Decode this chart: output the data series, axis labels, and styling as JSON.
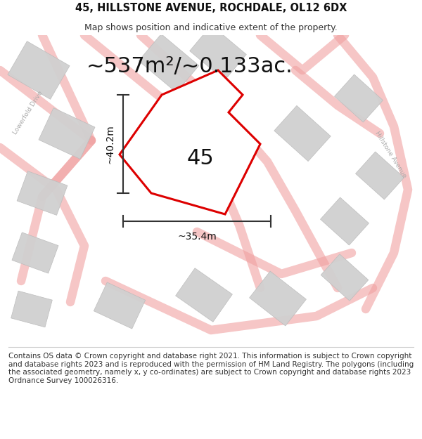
{
  "title": "45, HILLSTONE AVENUE, ROCHDALE, OL12 6DX",
  "subtitle": "Map shows position and indicative extent of the property.",
  "area_text": "~537m²/~0.133ac.",
  "width_label": "~35.4m",
  "height_label": "~40.2m",
  "number_label": "45",
  "footer_text": "Contains OS data © Crown copyright and database right 2021. This information is subject to Crown copyright and database rights 2023 and is reproduced with the permission of HM Land Registry. The polygons (including the associated geometry, namely x, y co-ordinates) are subject to Crown copyright and database rights 2023 Ordnance Survey 100026316.",
  "bg_color": "#ffffff",
  "map_bg_color": "#f7f7f7",
  "plot_color": "#dd0000",
  "road_color": "#f0a0a0",
  "building_color": "#d0d0d0",
  "title_fontsize": 10.5,
  "subtitle_fontsize": 9,
  "area_fontsize": 22,
  "label_fontsize": 10,
  "number_fontsize": 22,
  "footer_fontsize": 7.5,
  "road_lw": 9,
  "road_alpha": 0.6
}
